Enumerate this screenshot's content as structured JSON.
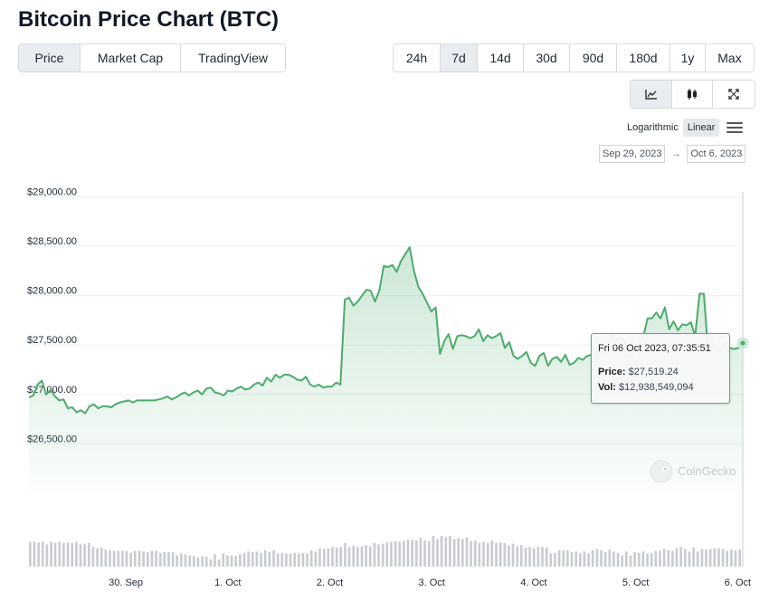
{
  "page_title": "Bitcoin Price Chart (BTC)",
  "tabs": [
    {
      "label": "Price",
      "active": true
    },
    {
      "label": "Market Cap",
      "active": false
    },
    {
      "label": "TradingView",
      "active": false
    }
  ],
  "ranges": [
    {
      "label": "24h",
      "active": false
    },
    {
      "label": "7d",
      "active": true
    },
    {
      "label": "14d",
      "active": false
    },
    {
      "label": "30d",
      "active": false
    },
    {
      "label": "90d",
      "active": false
    },
    {
      "label": "180d",
      "active": false
    },
    {
      "label": "1y",
      "active": false
    },
    {
      "label": "Max",
      "active": false
    }
  ],
  "chart_types": [
    {
      "icon": "line-chart-icon",
      "active": true
    },
    {
      "icon": "candlestick-icon",
      "active": false
    },
    {
      "icon": "expand-icon",
      "active": false
    }
  ],
  "scale": {
    "logarithmic_label": "Logarithmic",
    "linear_label": "Linear",
    "active": "Linear"
  },
  "date_range": {
    "from": "Sep 29, 2023",
    "to": "Oct 6, 2023",
    "arrow": "→"
  },
  "watermark": "CoinGecko",
  "colors": {
    "line": "#4dab6d",
    "fill": "#4dab6d",
    "volume": "#c8cbd0",
    "grid": "#eef0f2",
    "accent": "#52b071"
  },
  "tooltip": {
    "timestamp": "Fri 06 Oct 2023, 07:35:51",
    "price_label": "Price:",
    "price_value": "$27,519.24",
    "vol_label": "Vol:",
    "vol_value": "$12,938,549,094"
  },
  "chart_data": {
    "type": "area",
    "title": "",
    "xlabel": "",
    "ylabel": "",
    "y_ticks": [
      26500,
      27000,
      27500,
      28000,
      28500,
      29000
    ],
    "y_tick_labels": [
      "$26,500.00",
      "$27,000.00",
      "$27,500.00",
      "$28,000.00",
      "$28,500.00",
      "$29,000.00"
    ],
    "ylim": [
      26000,
      29050
    ],
    "x_range_days": [
      "Sep 29, 2023",
      "Oct 6, 2023"
    ],
    "x_tick_labels": [
      "30. Sep",
      "1. Oct",
      "2. Oct",
      "3. Oct",
      "4. Oct",
      "5. Oct",
      "6. Oct"
    ],
    "grid": true,
    "series": [
      {
        "values": [
          26970,
          26990,
          27100,
          27140,
          27000,
          27050,
          26980,
          26940,
          26950,
          26860,
          26870,
          26820,
          26840,
          26810,
          26880,
          26900,
          26860,
          26880,
          26880,
          26870,
          26900,
          26920,
          26930,
          26940,
          26920,
          26940,
          26940,
          26940,
          26940,
          26940,
          26950,
          26960,
          26980,
          26950,
          26970,
          27000,
          27020,
          26990,
          27020,
          27040,
          27000,
          27060,
          27070,
          27020,
          27010,
          26990,
          27040,
          27030,
          27060,
          27080,
          27050,
          27060,
          27100,
          27120,
          27090,
          27170,
          27130,
          27200,
          27170,
          27200,
          27200,
          27180,
          27150,
          27140,
          27180,
          27100,
          27080,
          27100,
          27070,
          27080,
          27080,
          27120,
          27100,
          27960,
          27980,
          27900,
          27940,
          28000,
          28060,
          28050,
          27940,
          28050,
          28300,
          28290,
          28310,
          28240,
          28350,
          28420,
          28490,
          28250,
          28090,
          28020,
          27930,
          27840,
          27880,
          27410,
          27540,
          27610,
          27460,
          27590,
          27600,
          27590,
          27570,
          27590,
          27660,
          27540,
          27600,
          27570,
          27590,
          27620,
          27470,
          27530,
          27390,
          27360,
          27390,
          27430,
          27320,
          27290,
          27390,
          27420,
          27290,
          27360,
          27380,
          27330,
          27400,
          27300,
          27320,
          27370,
          27350,
          27390,
          27400,
          27390,
          27410,
          27460,
          27530,
          27610,
          27550,
          27590,
          27500,
          27380,
          27440,
          27510,
          27580,
          27770,
          27770,
          27830,
          27770,
          27880,
          27660,
          27740,
          27650,
          27710,
          27700,
          27730,
          27590,
          28020,
          28020,
          27430,
          27520,
          27460,
          27450,
          27520,
          27470,
          27460,
          27470,
          27519
        ]
      }
    ],
    "volume": [
      38,
      38,
      37,
      38,
      34,
      38,
      36,
      38,
      36,
      37,
      36,
      38,
      34,
      35,
      36,
      30,
      28,
      29,
      26,
      25,
      24,
      24,
      24,
      24,
      21,
      24,
      24,
      23,
      22,
      24,
      24,
      21,
      22,
      22,
      22,
      17,
      20,
      19,
      17,
      16,
      14,
      16,
      15,
      11,
      19,
      11,
      20,
      17,
      17,
      16,
      19,
      21,
      23,
      22,
      23,
      21,
      25,
      23,
      25,
      20,
      21,
      20,
      20,
      21,
      20,
      21,
      20,
      25,
      23,
      28,
      27,
      28,
      30,
      29,
      30,
      36,
      30,
      32,
      30,
      31,
      33,
      31,
      36,
      34,
      35,
      37,
      38,
      39,
      38,
      39,
      41,
      41,
      40,
      44,
      40,
      39,
      47,
      42,
      47,
      45,
      47,
      42,
      44,
      42,
      44,
      39,
      40,
      36,
      38,
      36,
      40,
      36,
      37,
      36,
      32,
      35,
      31,
      33,
      29,
      30,
      28,
      30,
      30,
      29,
      20,
      21,
      25,
      25,
      25,
      22,
      23,
      20,
      23,
      20,
      25,
      27,
      25,
      22,
      26,
      23,
      21,
      17,
      23,
      17,
      22,
      21,
      23,
      20,
      21,
      24,
      24,
      27,
      25,
      24,
      28,
      30,
      27,
      23,
      29,
      23,
      27,
      26,
      27,
      28,
      28,
      27,
      24,
      26,
      25,
      26
    ]
  }
}
